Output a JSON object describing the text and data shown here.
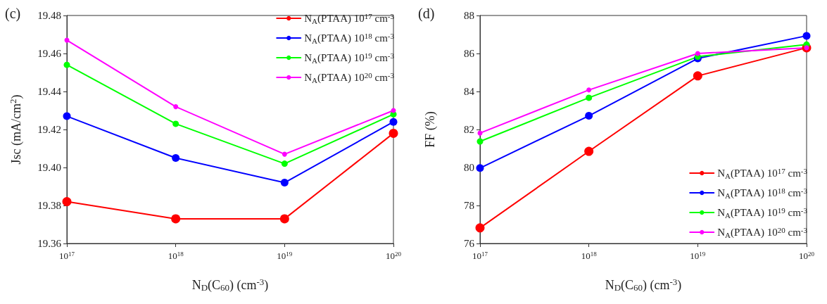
{
  "chart_data": [
    {
      "type": "line",
      "title": "(c)",
      "xlabel": "N$_{D}$(C$_{60}$) (cm$^{-3}$)",
      "ylabel": "Jsc (mA/cm$^{2}$)",
      "log": "x",
      "grid": false,
      "legend": "top right",
      "marker": "circle",
      "line_style": "solid",
      "x": [
        1e+17,
        1e+18,
        1e+19,
        1e+20
      ],
      "xlim": [
        1e+17,
        1e+20
      ],
      "xticks": [
        {
          "value": 1e+17,
          "label": "10$^{17}$"
        },
        {
          "value": 1e+18,
          "label": "10$^{18}$"
        },
        {
          "value": 1e+19,
          "label": "10$^{19}$"
        },
        {
          "value": 1e+20,
          "label": "10$^{20}$"
        }
      ],
      "ylim": [
        19.36,
        19.48
      ],
      "yticks": [
        {
          "value": 19.36,
          "label": "19.36"
        },
        {
          "value": 19.38,
          "label": "19.38"
        },
        {
          "value": 19.4,
          "label": "19.40"
        },
        {
          "value": 19.42,
          "label": "19.42"
        },
        {
          "value": 19.44,
          "label": "19.44"
        },
        {
          "value": 19.46,
          "label": "19.46"
        },
        {
          "value": 19.48,
          "label": "19.48"
        }
      ],
      "series": [
        {
          "name": "N$_{A}$(PTAA) 10$^{17}$ cm$^{-3}$",
          "color": "#ff0000",
          "values": [
            19.382,
            19.373,
            19.373,
            19.418
          ]
        },
        {
          "name": "N$_{A}$(PTAA) 10$^{18}$ cm$^{-3}$",
          "color": "#0000ff",
          "values": [
            19.427,
            19.405,
            19.392,
            19.424
          ]
        },
        {
          "name": "N$_{A}$(PTAA) 10$^{19}$ cm$^{-3}$",
          "color": "#00ff00",
          "values": [
            19.454,
            19.423,
            19.402,
            19.428
          ]
        },
        {
          "name": "N$_{A}$(PTAA) 10$^{20}$ cm$^{-3}$",
          "color": "#ff00ff",
          "values": [
            19.467,
            19.432,
            19.407,
            19.43
          ]
        }
      ]
    },
    {
      "type": "line",
      "title": "(d)",
      "xlabel": "N$_{D}$(C$_{60}$) (cm$^{-3}$)",
      "ylabel": "FF (%)",
      "log": "x",
      "grid": false,
      "legend": "bottom right",
      "marker": "circle",
      "line_style": "solid",
      "x": [
        1e+17,
        1e+18,
        1e+19,
        1e+20
      ],
      "xlim": [
        1e+17,
        1e+20
      ],
      "xticks": [
        {
          "value": 1e+17,
          "label": "10$^{17}$"
        },
        {
          "value": 1e+18,
          "label": "10$^{18}$"
        },
        {
          "value": 1e+19,
          "label": "10$^{19}$"
        },
        {
          "value": 1e+20,
          "label": "10$^{20}$"
        }
      ],
      "ylim": [
        76,
        88
      ],
      "yticks": [
        76,
        78,
        80,
        82,
        84,
        86,
        88
      ],
      "series": [
        {
          "name": "N$_{A}$(PTAA) 10$^{17}$ cm$^{-3}$",
          "color": "#ff0000",
          "values": [
            76.82,
            80.85,
            84.82,
            86.3
          ]
        },
        {
          "name": "N$_{A}$(PTAA) 10$^{18}$ cm$^{-3}$",
          "color": "#0000ff",
          "values": [
            79.97,
            82.72,
            85.74,
            86.93
          ]
        },
        {
          "name": "N$_{A}$(PTAA) 10$^{19}$ cm$^{-3}$",
          "color": "#00ff00",
          "values": [
            81.37,
            83.67,
            85.83,
            86.47
          ]
        },
        {
          "name": "N$_{A}$(PTAA) 10$^{20}$ cm$^{-3}$",
          "color": "#ff00ff",
          "values": [
            81.81,
            84.08,
            86.0,
            86.3
          ]
        }
      ]
    }
  ]
}
